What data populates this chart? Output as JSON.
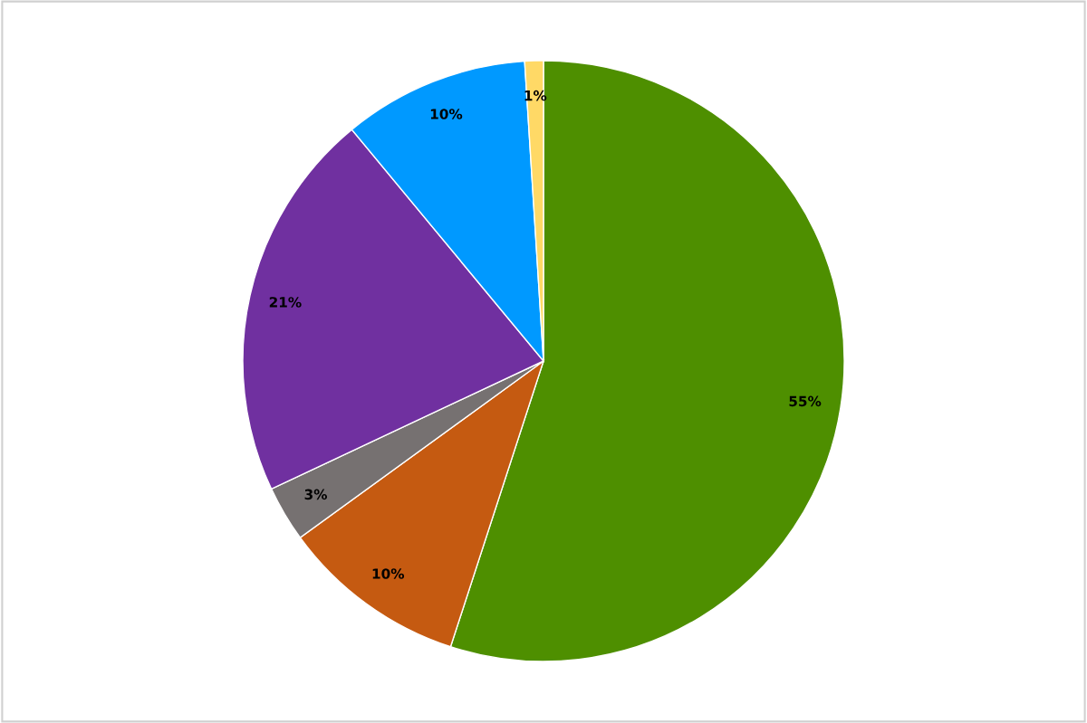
{
  "chart_data": {
    "type": "pie",
    "categories": [
      null,
      null,
      null,
      null,
      null,
      null
    ],
    "values": [
      55,
      10,
      3,
      21,
      10,
      1
    ],
    "colors": [
      "#4e8f00",
      "#c55a11",
      "#767171",
      "#7030a0",
      "#0099ff",
      "#ffd966"
    ],
    "value_labels": [
      "55%",
      "10%",
      "3%",
      "21%",
      "10%",
      "1%"
    ]
  }
}
